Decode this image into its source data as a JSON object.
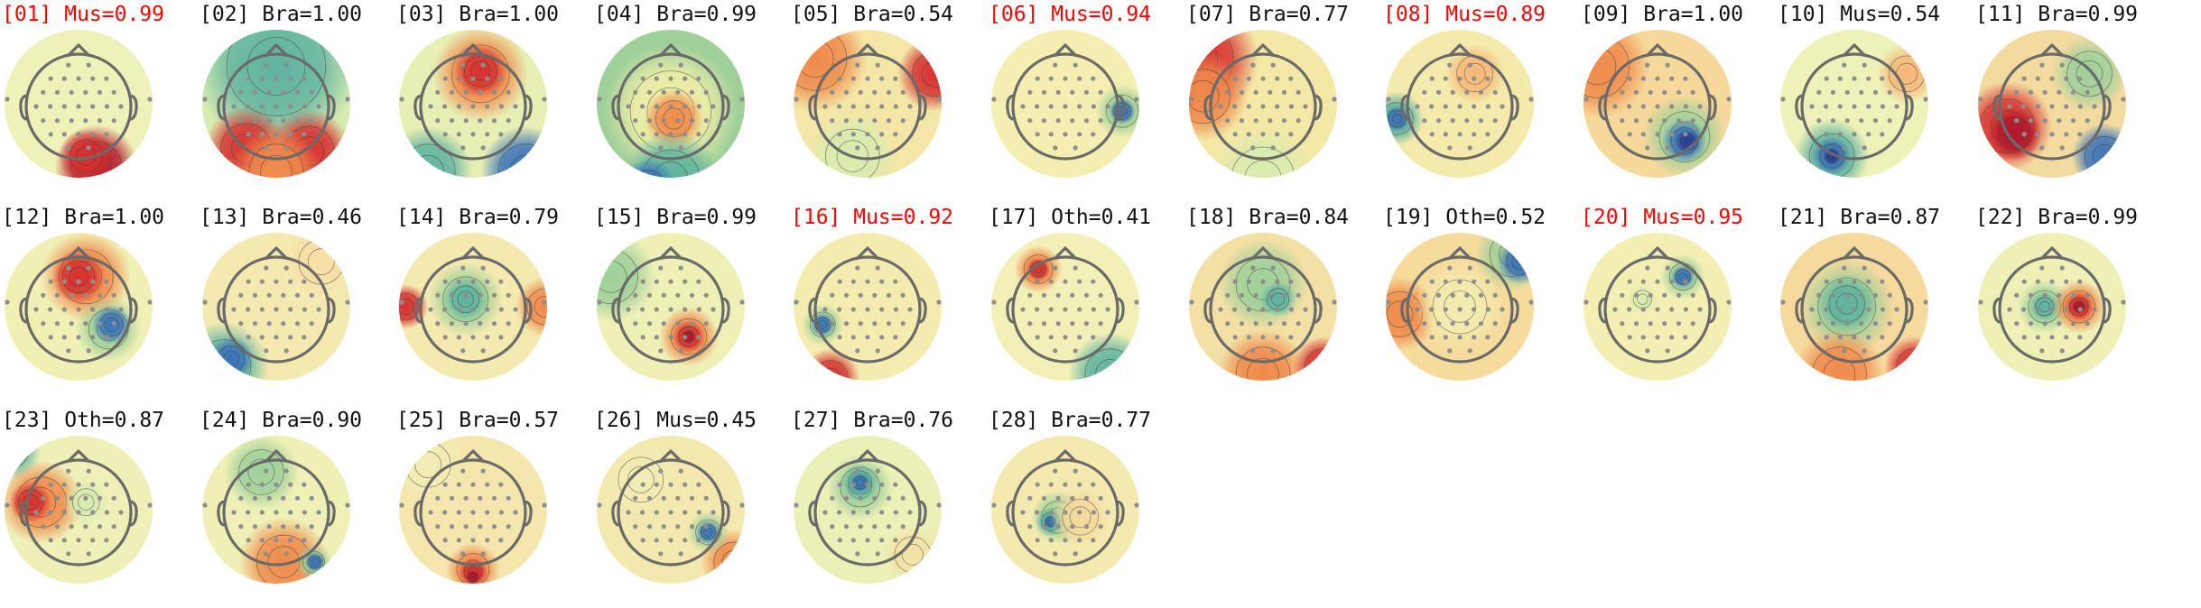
{
  "flag_color": "#ff0000",
  "text_color": "#111111",
  "components": [
    {
      "id": "01",
      "label": "[01] Mus=0.99",
      "flagged": true
    },
    {
      "id": "02",
      "label": "[02] Bra=1.00",
      "flagged": false
    },
    {
      "id": "03",
      "label": "[03] Bra=1.00",
      "flagged": false
    },
    {
      "id": "04",
      "label": "[04] Bra=0.99",
      "flagged": false
    },
    {
      "id": "05",
      "label": "[05] Bra=0.54",
      "flagged": false
    },
    {
      "id": "06",
      "label": "[06] Mus=0.94",
      "flagged": true
    },
    {
      "id": "07",
      "label": "[07] Bra=0.77",
      "flagged": false
    },
    {
      "id": "08",
      "label": "[08] Mus=0.89",
      "flagged": true
    },
    {
      "id": "09",
      "label": "[09] Bra=1.00",
      "flagged": false
    },
    {
      "id": "10",
      "label": "[10] Mus=0.54",
      "flagged": false
    },
    {
      "id": "11",
      "label": "[11] Bra=0.99",
      "flagged": false
    },
    {
      "id": "12",
      "label": "[12] Bra=1.00",
      "flagged": false
    },
    {
      "id": "13",
      "label": "[13] Bra=0.46",
      "flagged": false
    },
    {
      "id": "14",
      "label": "[14] Bra=0.79",
      "flagged": false
    },
    {
      "id": "15",
      "label": "[15] Bra=0.99",
      "flagged": false
    },
    {
      "id": "16",
      "label": "[16] Mus=0.92",
      "flagged": true
    },
    {
      "id": "17",
      "label": "[17] Oth=0.41",
      "flagged": false
    },
    {
      "id": "18",
      "label": "[18] Bra=0.84",
      "flagged": false
    },
    {
      "id": "19",
      "label": "[19] Oth=0.52",
      "flagged": false
    },
    {
      "id": "20",
      "label": "[20] Mus=0.95",
      "flagged": true
    },
    {
      "id": "21",
      "label": "[21] Bra=0.87",
      "flagged": false
    },
    {
      "id": "22",
      "label": "[22] Bra=0.99",
      "flagged": false
    },
    {
      "id": "23",
      "label": "[23] Oth=0.87",
      "flagged": false
    },
    {
      "id": "24",
      "label": "[24] Bra=0.90",
      "flagged": false
    },
    {
      "id": "25",
      "label": "[25] Bra=0.57",
      "flagged": false
    },
    {
      "id": "26",
      "label": "[26] Mus=0.45",
      "flagged": false
    },
    {
      "id": "27",
      "label": "[27] Bra=0.76",
      "flagged": false
    },
    {
      "id": "28",
      "label": "[28] Bra=0.77",
      "flagged": false
    }
  ]
}
